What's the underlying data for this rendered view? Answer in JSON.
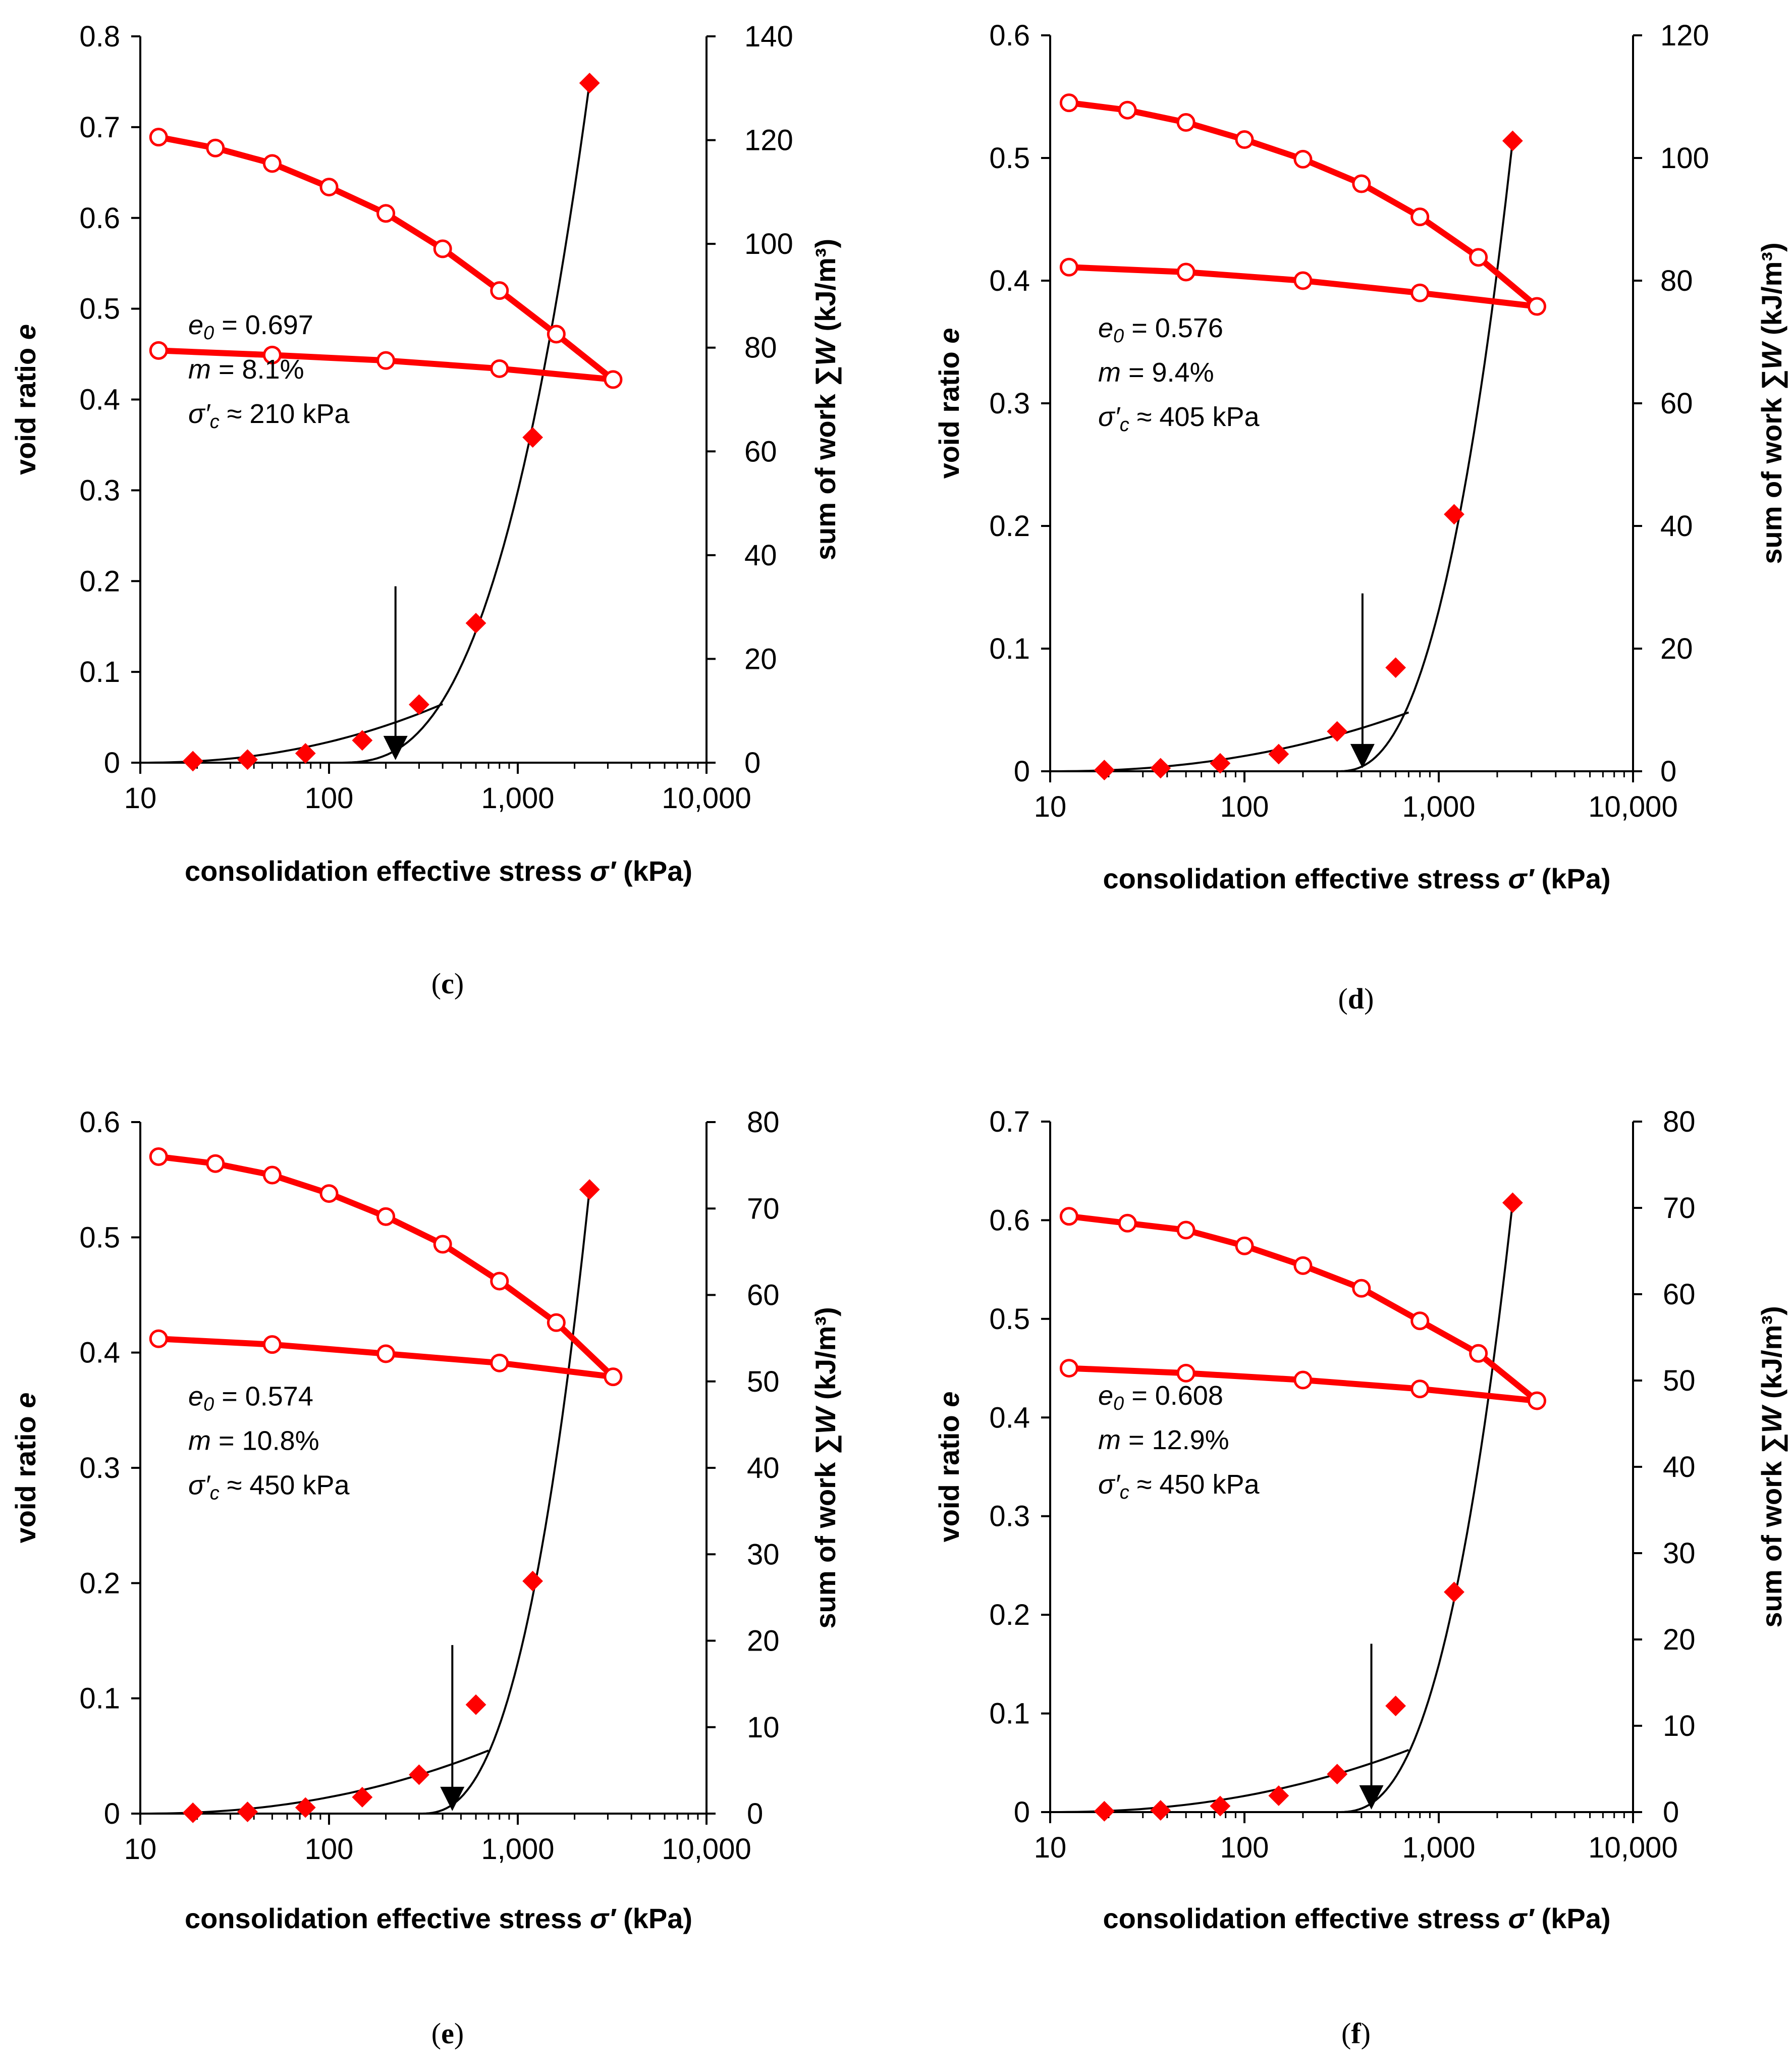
{
  "figure": {
    "panels": [
      {
        "label": "c",
        "prefix": "(",
        "suffix": ")"
      },
      {
        "label": "d",
        "prefix": "(",
        "suffix": ")"
      },
      {
        "label": "e",
        "prefix": "(",
        "suffix": ")"
      },
      {
        "label": "f",
        "prefix": "(",
        "suffix": ")"
      }
    ]
  },
  "colors": {
    "series": "#ff0000",
    "fit": "#000000",
    "axis": "#000000",
    "marker_fill": "#ffffff"
  },
  "chart_data": [
    {
      "panel": "c",
      "type": "scatter",
      "xlabel": "consolidation effective stress σ′ (kPa)",
      "ylabel_left": "void ratio e",
      "ylabel_right": "sum of work ∑W (kJ/m³)",
      "x_scale": "log",
      "xlim": [
        10,
        10000
      ],
      "xticks": [
        10,
        100,
        1000,
        10000
      ],
      "xtick_labels": [
        "10",
        "100",
        "1,000",
        "10,000"
      ],
      "ylim_left": [
        0,
        0.8
      ],
      "yticks_left": [
        0,
        0.1,
        0.2,
        0.3,
        0.4,
        0.5,
        0.6,
        0.7,
        0.8
      ],
      "ytick_labels_left": [
        "0",
        "0.1",
        "0.2",
        "0.3",
        "0.4",
        "0.5",
        "0.6",
        "0.7",
        "0.8"
      ],
      "ylim_right": [
        0,
        140
      ],
      "yticks_right": [
        0,
        20,
        40,
        60,
        80,
        100,
        120,
        140
      ],
      "ytick_labels_right": [
        "0",
        "20",
        "40",
        "60",
        "80",
        "100",
        "120",
        "140"
      ],
      "void_ratio_loading": {
        "x": [
          12.5,
          25,
          50,
          100,
          200,
          400,
          800,
          1600,
          3200
        ],
        "y": [
          0.689,
          0.677,
          0.66,
          0.634,
          0.605,
          0.566,
          0.52,
          0.472,
          0.422
        ]
      },
      "void_ratio_unloading": {
        "x": [
          3200,
          800,
          200,
          50,
          12.5
        ],
        "y": [
          0.422,
          0.434,
          0.443,
          0.449,
          0.454
        ]
      },
      "work": {
        "x": [
          19,
          37,
          75,
          150,
          300,
          600,
          1200,
          2400
        ],
        "y": [
          0.3,
          0.6,
          1.8,
          4.3,
          11.2,
          26.9,
          62.7,
          131
        ]
      },
      "fit_low": {
        "x0": 10,
        "x1": 400,
        "x_break": 210,
        "y_break": 5.5,
        "y_end": 11.3
      },
      "fit_high": {
        "x0": 110,
        "x1": 2400,
        "y_end": 131,
        "exponent": 2.75
      },
      "arrow": {
        "x": 225,
        "y_top": 34,
        "y_bottom": 0.5
      },
      "annotation": {
        "e0_symbol": "e",
        "e0_sub": "0",
        "e0_text": " = 0.697",
        "m_symbol": "m",
        "m_text": " = 8.1%",
        "sc_symbol": "σ′",
        "sc_sub": "c",
        "sc_text": " ≈ 210 kPa"
      }
    },
    {
      "panel": "d",
      "type": "scatter",
      "xlabel": "consolidation effective stress σ′ (kPa)",
      "ylabel_left": "void ratio e",
      "ylabel_right": "sum of work ∑W (kJ/m³)",
      "x_scale": "log",
      "xlim": [
        10,
        10000
      ],
      "xticks": [
        10,
        100,
        1000,
        10000
      ],
      "xtick_labels": [
        "10",
        "100",
        "1,000",
        "10,000"
      ],
      "ylim_left": [
        0,
        0.6
      ],
      "yticks_left": [
        0,
        0.1,
        0.2,
        0.3,
        0.4,
        0.5,
        0.6
      ],
      "ytick_labels_left": [
        "0",
        "0.1",
        "0.2",
        "0.3",
        "0.4",
        "0.5",
        "0.6"
      ],
      "ylim_right": [
        0,
        120
      ],
      "yticks_right": [
        0,
        20,
        40,
        60,
        80,
        100,
        120
      ],
      "ytick_labels_right": [
        "0",
        "20",
        "40",
        "60",
        "80",
        "100",
        "120"
      ],
      "void_ratio_loading": {
        "x": [
          12.5,
          25,
          50,
          100,
          200,
          400,
          800,
          1600,
          3200
        ],
        "y": [
          0.545,
          0.539,
          0.529,
          0.515,
          0.499,
          0.479,
          0.452,
          0.419,
          0.379
        ]
      },
      "void_ratio_unloading": {
        "x": [
          3200,
          800,
          200,
          50,
          12.5
        ],
        "y": [
          0.379,
          0.39,
          0.4,
          0.407,
          0.411
        ]
      },
      "work": {
        "x": [
          19,
          37,
          75,
          150,
          300,
          600,
          1200,
          2400
        ],
        "y": [
          0.2,
          0.5,
          1.3,
          2.8,
          6.5,
          16.9,
          41.9,
          102.8
        ]
      },
      "fit_low": {
        "x0": 10,
        "x1": 700,
        "x_break": 400,
        "y_break": 6.3,
        "y_end": 9.6
      },
      "fit_high": {
        "x0": 300,
        "x1": 2400,
        "y_end": 102.8,
        "exponent": 2.5
      },
      "arrow": {
        "x": 405,
        "y_top": 29,
        "y_bottom": 0.5
      },
      "annotation": {
        "e0_symbol": "e",
        "e0_sub": "0",
        "e0_text": " = 0.576",
        "m_symbol": "m",
        "m_text": " = 9.4%",
        "sc_symbol": "σ′",
        "sc_sub": "c",
        "sc_text": " ≈ 405 kPa"
      }
    },
    {
      "panel": "e",
      "type": "scatter",
      "xlabel": "consolidation effective stress σ′ (kPa)",
      "ylabel_left": "void ratio e",
      "ylabel_right": "sum of work ∑W (kJ/m³)",
      "x_scale": "log",
      "xlim": [
        10,
        10000
      ],
      "xticks": [
        10,
        100,
        1000,
        10000
      ],
      "xtick_labels": [
        "10",
        "100",
        "1,000",
        "10,000"
      ],
      "ylim_left": [
        0,
        0.6
      ],
      "yticks_left": [
        0,
        0.1,
        0.2,
        0.3,
        0.4,
        0.5,
        0.6
      ],
      "ytick_labels_left": [
        "0",
        "0.1",
        "0.2",
        "0.3",
        "0.4",
        "0.5",
        "0.6"
      ],
      "ylim_right": [
        0,
        80
      ],
      "yticks_right": [
        0,
        10,
        20,
        30,
        40,
        50,
        60,
        70,
        80
      ],
      "ytick_labels_right": [
        "0",
        "10",
        "20",
        "30",
        "40",
        "50",
        "60",
        "70",
        "80"
      ],
      "void_ratio_loading": {
        "x": [
          12.5,
          25,
          50,
          100,
          200,
          400,
          800,
          1600,
          3200
        ],
        "y": [
          0.57,
          0.564,
          0.554,
          0.538,
          0.518,
          0.494,
          0.462,
          0.426,
          0.379
        ]
      },
      "void_ratio_unloading": {
        "x": [
          3200,
          800,
          200,
          50,
          12.5
        ],
        "y": [
          0.379,
          0.391,
          0.399,
          0.407,
          0.412
        ]
      },
      "work": {
        "x": [
          19,
          37,
          75,
          150,
          300,
          600,
          1200,
          2400
        ],
        "y": [
          0.1,
          0.2,
          0.7,
          1.9,
          4.5,
          12.6,
          26.9,
          72.2
        ]
      },
      "fit_low": {
        "x0": 10,
        "x1": 700,
        "x_break": 450,
        "y_break": 4.5,
        "y_end": 7.3
      },
      "fit_high": {
        "x0": 300,
        "x1": 2400,
        "y_end": 72.2,
        "exponent": 2.6
      },
      "arrow": {
        "x": 450,
        "y_top": 19.5,
        "y_bottom": 0.3
      },
      "annotation": {
        "e0_symbol": "e",
        "e0_sub": "0",
        "e0_text": " = 0.574",
        "m_symbol": "m",
        "m_text": " = 10.8%",
        "sc_symbol": "σ′",
        "sc_sub": "c",
        "sc_text": " ≈ 450 kPa"
      }
    },
    {
      "panel": "f",
      "type": "scatter",
      "xlabel": "consolidation effective stress σ′ (kPa)",
      "ylabel_left": "void ratio e",
      "ylabel_right": "sum of work ∑W (kJ/m³)",
      "x_scale": "log",
      "xlim": [
        10,
        10000
      ],
      "xticks": [
        10,
        100,
        1000,
        10000
      ],
      "xtick_labels": [
        "10",
        "100",
        "1,000",
        "10,000"
      ],
      "ylim_left": [
        0,
        0.7
      ],
      "yticks_left": [
        0,
        0.1,
        0.2,
        0.3,
        0.4,
        0.5,
        0.6,
        0.7
      ],
      "ytick_labels_left": [
        "0",
        "0.1",
        "0.2",
        "0.3",
        "0.4",
        "0.5",
        "0.6",
        "0.7"
      ],
      "ylim_right": [
        0,
        80
      ],
      "yticks_right": [
        0,
        10,
        20,
        30,
        40,
        50,
        60,
        70,
        80
      ],
      "ytick_labels_right": [
        "0",
        "10",
        "20",
        "30",
        "40",
        "50",
        "60",
        "70",
        "80"
      ],
      "void_ratio_loading": {
        "x": [
          12.5,
          25,
          50,
          100,
          200,
          400,
          800,
          1600,
          3200
        ],
        "y": [
          0.604,
          0.597,
          0.59,
          0.574,
          0.554,
          0.531,
          0.498,
          0.465,
          0.417
        ]
      },
      "void_ratio_unloading": {
        "x": [
          3200,
          800,
          200,
          50,
          12.5
        ],
        "y": [
          0.417,
          0.429,
          0.438,
          0.445,
          0.45
        ]
      },
      "work": {
        "x": [
          19,
          37,
          75,
          150,
          300,
          600,
          1200,
          2400
        ],
        "y": [
          0.1,
          0.2,
          0.7,
          1.9,
          4.4,
          12.3,
          25.5,
          70.6
        ]
      },
      "fit_low": {
        "x0": 10,
        "x1": 700,
        "x_break": 450,
        "y_break": 4.8,
        "y_end": 7.2
      },
      "fit_high": {
        "x0": 300,
        "x1": 2400,
        "y_end": 70.6,
        "exponent": 2.6
      },
      "arrow": {
        "x": 450,
        "y_top": 19.5,
        "y_bottom": 0.3
      },
      "annotation": {
        "e0_symbol": "e",
        "e0_sub": "0",
        "e0_text": " = 0.608",
        "m_symbol": "m",
        "m_text": " = 12.9%",
        "sc_symbol": "σ′",
        "sc_sub": "c",
        "sc_text": " ≈ 450 kPa"
      }
    }
  ]
}
